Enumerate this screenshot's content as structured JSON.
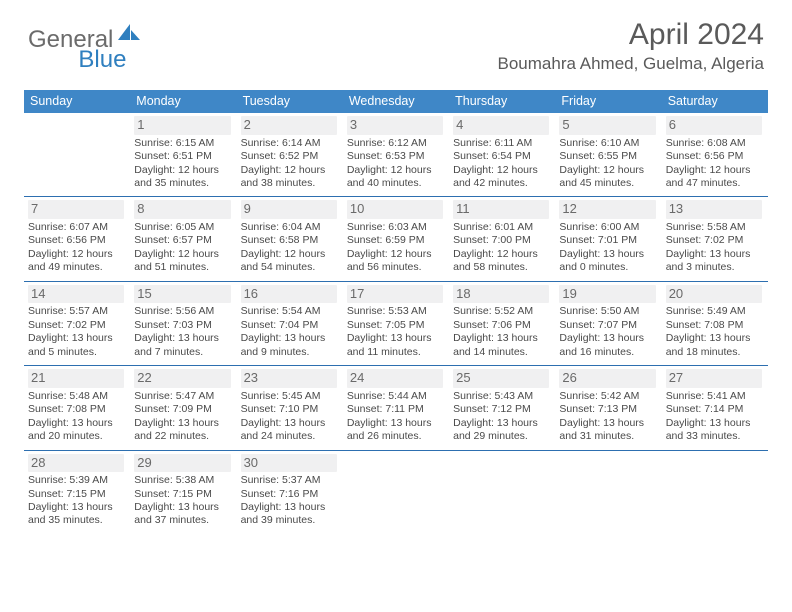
{
  "brand": {
    "part1": "General",
    "part2": "Blue"
  },
  "title": "April 2024",
  "location": "Boumahra Ahmed, Guelma, Algeria",
  "colors": {
    "header_bg": "#3f87c7",
    "row_border": "#2d6fb0",
    "brand_blue": "#2f7fbf",
    "text": "#4a4a4a",
    "shade": "#f0f0f1"
  },
  "weekdays": [
    "Sunday",
    "Monday",
    "Tuesday",
    "Wednesday",
    "Thursday",
    "Friday",
    "Saturday"
  ],
  "weeks": [
    [
      {
        "n": "",
        "sr": "",
        "ss": "",
        "d1": "",
        "d2": ""
      },
      {
        "n": "1",
        "sr": "Sunrise: 6:15 AM",
        "ss": "Sunset: 6:51 PM",
        "d1": "Daylight: 12 hours",
        "d2": "and 35 minutes."
      },
      {
        "n": "2",
        "sr": "Sunrise: 6:14 AM",
        "ss": "Sunset: 6:52 PM",
        "d1": "Daylight: 12 hours",
        "d2": "and 38 minutes."
      },
      {
        "n": "3",
        "sr": "Sunrise: 6:12 AM",
        "ss": "Sunset: 6:53 PM",
        "d1": "Daylight: 12 hours",
        "d2": "and 40 minutes."
      },
      {
        "n": "4",
        "sr": "Sunrise: 6:11 AM",
        "ss": "Sunset: 6:54 PM",
        "d1": "Daylight: 12 hours",
        "d2": "and 42 minutes."
      },
      {
        "n": "5",
        "sr": "Sunrise: 6:10 AM",
        "ss": "Sunset: 6:55 PM",
        "d1": "Daylight: 12 hours",
        "d2": "and 45 minutes."
      },
      {
        "n": "6",
        "sr": "Sunrise: 6:08 AM",
        "ss": "Sunset: 6:56 PM",
        "d1": "Daylight: 12 hours",
        "d2": "and 47 minutes."
      }
    ],
    [
      {
        "n": "7",
        "sr": "Sunrise: 6:07 AM",
        "ss": "Sunset: 6:56 PM",
        "d1": "Daylight: 12 hours",
        "d2": "and 49 minutes."
      },
      {
        "n": "8",
        "sr": "Sunrise: 6:05 AM",
        "ss": "Sunset: 6:57 PM",
        "d1": "Daylight: 12 hours",
        "d2": "and 51 minutes."
      },
      {
        "n": "9",
        "sr": "Sunrise: 6:04 AM",
        "ss": "Sunset: 6:58 PM",
        "d1": "Daylight: 12 hours",
        "d2": "and 54 minutes."
      },
      {
        "n": "10",
        "sr": "Sunrise: 6:03 AM",
        "ss": "Sunset: 6:59 PM",
        "d1": "Daylight: 12 hours",
        "d2": "and 56 minutes."
      },
      {
        "n": "11",
        "sr": "Sunrise: 6:01 AM",
        "ss": "Sunset: 7:00 PM",
        "d1": "Daylight: 12 hours",
        "d2": "and 58 minutes."
      },
      {
        "n": "12",
        "sr": "Sunrise: 6:00 AM",
        "ss": "Sunset: 7:01 PM",
        "d1": "Daylight: 13 hours",
        "d2": "and 0 minutes."
      },
      {
        "n": "13",
        "sr": "Sunrise: 5:58 AM",
        "ss": "Sunset: 7:02 PM",
        "d1": "Daylight: 13 hours",
        "d2": "and 3 minutes."
      }
    ],
    [
      {
        "n": "14",
        "sr": "Sunrise: 5:57 AM",
        "ss": "Sunset: 7:02 PM",
        "d1": "Daylight: 13 hours",
        "d2": "and 5 minutes."
      },
      {
        "n": "15",
        "sr": "Sunrise: 5:56 AM",
        "ss": "Sunset: 7:03 PM",
        "d1": "Daylight: 13 hours",
        "d2": "and 7 minutes."
      },
      {
        "n": "16",
        "sr": "Sunrise: 5:54 AM",
        "ss": "Sunset: 7:04 PM",
        "d1": "Daylight: 13 hours",
        "d2": "and 9 minutes."
      },
      {
        "n": "17",
        "sr": "Sunrise: 5:53 AM",
        "ss": "Sunset: 7:05 PM",
        "d1": "Daylight: 13 hours",
        "d2": "and 11 minutes."
      },
      {
        "n": "18",
        "sr": "Sunrise: 5:52 AM",
        "ss": "Sunset: 7:06 PM",
        "d1": "Daylight: 13 hours",
        "d2": "and 14 minutes."
      },
      {
        "n": "19",
        "sr": "Sunrise: 5:50 AM",
        "ss": "Sunset: 7:07 PM",
        "d1": "Daylight: 13 hours",
        "d2": "and 16 minutes."
      },
      {
        "n": "20",
        "sr": "Sunrise: 5:49 AM",
        "ss": "Sunset: 7:08 PM",
        "d1": "Daylight: 13 hours",
        "d2": "and 18 minutes."
      }
    ],
    [
      {
        "n": "21",
        "sr": "Sunrise: 5:48 AM",
        "ss": "Sunset: 7:08 PM",
        "d1": "Daylight: 13 hours",
        "d2": "and 20 minutes."
      },
      {
        "n": "22",
        "sr": "Sunrise: 5:47 AM",
        "ss": "Sunset: 7:09 PM",
        "d1": "Daylight: 13 hours",
        "d2": "and 22 minutes."
      },
      {
        "n": "23",
        "sr": "Sunrise: 5:45 AM",
        "ss": "Sunset: 7:10 PM",
        "d1": "Daylight: 13 hours",
        "d2": "and 24 minutes."
      },
      {
        "n": "24",
        "sr": "Sunrise: 5:44 AM",
        "ss": "Sunset: 7:11 PM",
        "d1": "Daylight: 13 hours",
        "d2": "and 26 minutes."
      },
      {
        "n": "25",
        "sr": "Sunrise: 5:43 AM",
        "ss": "Sunset: 7:12 PM",
        "d1": "Daylight: 13 hours",
        "d2": "and 29 minutes."
      },
      {
        "n": "26",
        "sr": "Sunrise: 5:42 AM",
        "ss": "Sunset: 7:13 PM",
        "d1": "Daylight: 13 hours",
        "d2": "and 31 minutes."
      },
      {
        "n": "27",
        "sr": "Sunrise: 5:41 AM",
        "ss": "Sunset: 7:14 PM",
        "d1": "Daylight: 13 hours",
        "d2": "and 33 minutes."
      }
    ],
    [
      {
        "n": "28",
        "sr": "Sunrise: 5:39 AM",
        "ss": "Sunset: 7:15 PM",
        "d1": "Daylight: 13 hours",
        "d2": "and 35 minutes."
      },
      {
        "n": "29",
        "sr": "Sunrise: 5:38 AM",
        "ss": "Sunset: 7:15 PM",
        "d1": "Daylight: 13 hours",
        "d2": "and 37 minutes."
      },
      {
        "n": "30",
        "sr": "Sunrise: 5:37 AM",
        "ss": "Sunset: 7:16 PM",
        "d1": "Daylight: 13 hours",
        "d2": "and 39 minutes."
      },
      {
        "n": "",
        "sr": "",
        "ss": "",
        "d1": "",
        "d2": ""
      },
      {
        "n": "",
        "sr": "",
        "ss": "",
        "d1": "",
        "d2": ""
      },
      {
        "n": "",
        "sr": "",
        "ss": "",
        "d1": "",
        "d2": ""
      },
      {
        "n": "",
        "sr": "",
        "ss": "",
        "d1": "",
        "d2": ""
      }
    ]
  ]
}
